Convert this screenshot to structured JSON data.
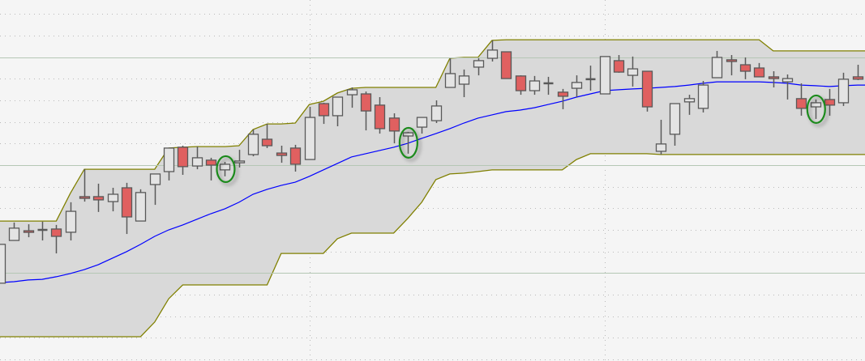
{
  "chart_data": {
    "type": "candlestick",
    "title": "",
    "xlabel": "",
    "ylabel": "",
    "xlim": [
      0,
      61.53
    ],
    "ylim": [
      -0.75,
      166.5
    ],
    "grid": {
      "horizontal_minor_step": 10,
      "horizontal_major_every": 50,
      "horizontal_major_offset": 40,
      "vertical_at_bars": [
        22,
        43
      ]
    },
    "candles_ohlc": [
      [
        35.3,
        53.3,
        35.3,
        53.3
      ],
      [
        55.1,
        63.4,
        55.1,
        60.8
      ],
      [
        59.6,
        62.6,
        56.6,
        58.9
      ],
      [
        60.0,
        63.8,
        55.1,
        60.0
      ],
      [
        60.4,
        62.3,
        49.1,
        57.0
      ],
      [
        58.9,
        72.8,
        55.1,
        68.6
      ],
      [
        75.4,
        88.1,
        73.1,
        74.6
      ],
      [
        75.4,
        81.4,
        68.3,
        73.9
      ],
      [
        73.1,
        79.5,
        68.6,
        76.5
      ],
      [
        79.5,
        81.8,
        58.1,
        66.0
      ],
      [
        64.1,
        78.8,
        64.1,
        77.3
      ],
      [
        81.0,
        85.9,
        71.6,
        85.9
      ],
      [
        87.0,
        97.9,
        82.9,
        97.9
      ],
      [
        98.3,
        99.0,
        85.5,
        89.3
      ],
      [
        89.6,
        98.6,
        88.1,
        93.4
      ],
      [
        92.3,
        93.4,
        82.9,
        90.0
      ],
      [
        87.8,
        91.5,
        84.8,
        90.4
      ],
      [
        91.1,
        97.1,
        88.9,
        91.9
      ],
      [
        94.9,
        106.5,
        94.1,
        104.3
      ],
      [
        102.0,
        109.1,
        97.9,
        99.0
      ],
      [
        95.6,
        99.0,
        91.1,
        94.5
      ],
      [
        97.9,
        99.4,
        87.0,
        90.4
      ],
      [
        92.6,
        117.0,
        92.6,
        112.1
      ],
      [
        118.5,
        118.9,
        109.1,
        112.9
      ],
      [
        112.9,
        121.5,
        108.0,
        121.5
      ],
      [
        122.6,
        126.0,
        116.6,
        124.9
      ],
      [
        123.0,
        124.1,
        106.1,
        115.1
      ],
      [
        117.8,
        121.5,
        104.6,
        106.9
      ],
      [
        111.8,
        114.0,
        100.1,
        105.8
      ],
      [
        103.5,
        105.4,
        95.3,
        105.0
      ],
      [
        107.6,
        112.1,
        104.6,
        112.1
      ],
      [
        110.6,
        120.0,
        109.5,
        117.4
      ],
      [
        126.0,
        139.5,
        126.0,
        132.4
      ],
      [
        127.5,
        134.3,
        121.5,
        131.3
      ],
      [
        135.4,
        139.5,
        131.6,
        138.4
      ],
      [
        139.5,
        147.8,
        138.0,
        143.3
      ],
      [
        142.5,
        142.5,
        130.1,
        130.1
      ],
      [
        131.3,
        131.6,
        122.6,
        124.5
      ],
      [
        124.5,
        131.3,
        122.6,
        129.0
      ],
      [
        127.9,
        130.9,
        122.6,
        127.9
      ],
      [
        123.8,
        125.3,
        115.9,
        121.9
      ],
      [
        125.6,
        131.6,
        121.5,
        128.3
      ],
      [
        129.8,
        136.1,
        124.5,
        129.8
      ],
      [
        123.0,
        140.3,
        123.0,
        140.3
      ],
      [
        138.4,
        141.0,
        132.8,
        133.1
      ],
      [
        131.6,
        140.3,
        126.4,
        134.6
      ],
      [
        133.5,
        133.5,
        114.8,
        117.0
      ],
      [
        96.4,
        111.0,
        94.9,
        99.8
      ],
      [
        104.3,
        118.5,
        99.0,
        118.5
      ],
      [
        119.3,
        122.6,
        113.3,
        120.8
      ],
      [
        116.3,
        129.0,
        114.4,
        127.1
      ],
      [
        130.5,
        142.9,
        130.5,
        139.9
      ],
      [
        138.8,
        141.0,
        131.6,
        138.0
      ],
      [
        136.5,
        139.9,
        129.8,
        133.5
      ],
      [
        135.0,
        137.3,
        130.9,
        130.9
      ],
      [
        130.9,
        133.5,
        126.0,
        130.1
      ],
      [
        128.6,
        132.0,
        120.4,
        130.1
      ],
      [
        120.8,
        127.9,
        112.9,
        116.3
      ],
      [
        117.0,
        120.4,
        111.4,
        118.9
      ],
      [
        120.4,
        125.3,
        112.9,
        117.8
      ],
      [
        118.9,
        132.8,
        117.4,
        129.8
      ],
      [
        130.9,
        136.5,
        129.4,
        129.8
      ]
    ],
    "upper_band": [
      64.1,
      64.1,
      64.1,
      64.1,
      64.1,
      76.9,
      88.1,
      88.1,
      88.1,
      88.1,
      88.1,
      88.1,
      97.9,
      98.3,
      98.6,
      98.6,
      98.6,
      99.0,
      106.5,
      109.1,
      109.1,
      109.5,
      118.1,
      119.6,
      123.4,
      125.6,
      126.0,
      126.0,
      126.0,
      126.0,
      126.0,
      126.0,
      139.5,
      139.9,
      139.9,
      147.8,
      148.1,
      148.1,
      148.1,
      148.1,
      148.1,
      148.1,
      148.1,
      148.1,
      148.1,
      148.1,
      148.1,
      148.1,
      148.1,
      148.1,
      148.1,
      148.1,
      148.1,
      148.1,
      148.1,
      142.9,
      142.9,
      142.9,
      142.9,
      142.9,
      142.9,
      142.9
    ],
    "lower_band": [
      10.5,
      10.5,
      10.5,
      10.5,
      10.5,
      10.5,
      10.5,
      10.5,
      10.5,
      10.5,
      10.5,
      17.3,
      28.1,
      34.5,
      34.5,
      34.5,
      34.5,
      34.5,
      34.5,
      34.5,
      49.1,
      49.1,
      49.1,
      49.1,
      55.9,
      58.5,
      58.5,
      58.5,
      58.5,
      65.3,
      72.8,
      83.3,
      85.9,
      86.3,
      87.0,
      87.8,
      87.8,
      87.8,
      87.8,
      87.8,
      87.8,
      92.6,
      95.3,
      95.3,
      95.3,
      95.3,
      95.3,
      94.9,
      94.9,
      94.9,
      94.9,
      94.9,
      94.9,
      94.9,
      94.9,
      94.9,
      94.9,
      94.9,
      94.9,
      94.9,
      94.9,
      94.9
    ],
    "moving_average": [
      35.6,
      36.0,
      36.8,
      37.1,
      38.3,
      39.8,
      41.6,
      43.9,
      46.9,
      49.9,
      53.3,
      57.0,
      60.0,
      62.3,
      64.9,
      67.5,
      69.8,
      72.8,
      76.5,
      78.8,
      80.6,
      82.1,
      84.8,
      87.8,
      90.8,
      93.8,
      95.3,
      96.8,
      98.3,
      100.1,
      102.4,
      104.6,
      106.9,
      109.5,
      111.8,
      113.3,
      114.8,
      115.5,
      116.6,
      118.1,
      119.6,
      121.5,
      123.0,
      124.5,
      124.9,
      125.3,
      125.6,
      126.0,
      126.4,
      127.1,
      127.9,
      128.6,
      128.6,
      128.6,
      128.6,
      128.3,
      127.9,
      127.1,
      126.8,
      126.4,
      126.8,
      127.1
    ],
    "highlighted_bars": [
      16,
      29,
      58
    ],
    "colors": {
      "background": "#f5f5f5",
      "band_fill": "#d9d9d9",
      "band_line": "#808000",
      "moving_average": "#0000ff",
      "bull_body": "#e4e4e4",
      "bear_body": "#e06060",
      "candle_outline": "#595959",
      "highlight": "#1a8a1a",
      "grid_minor": "#b9b9b9",
      "grid_major": "#b5c7b5"
    }
  }
}
